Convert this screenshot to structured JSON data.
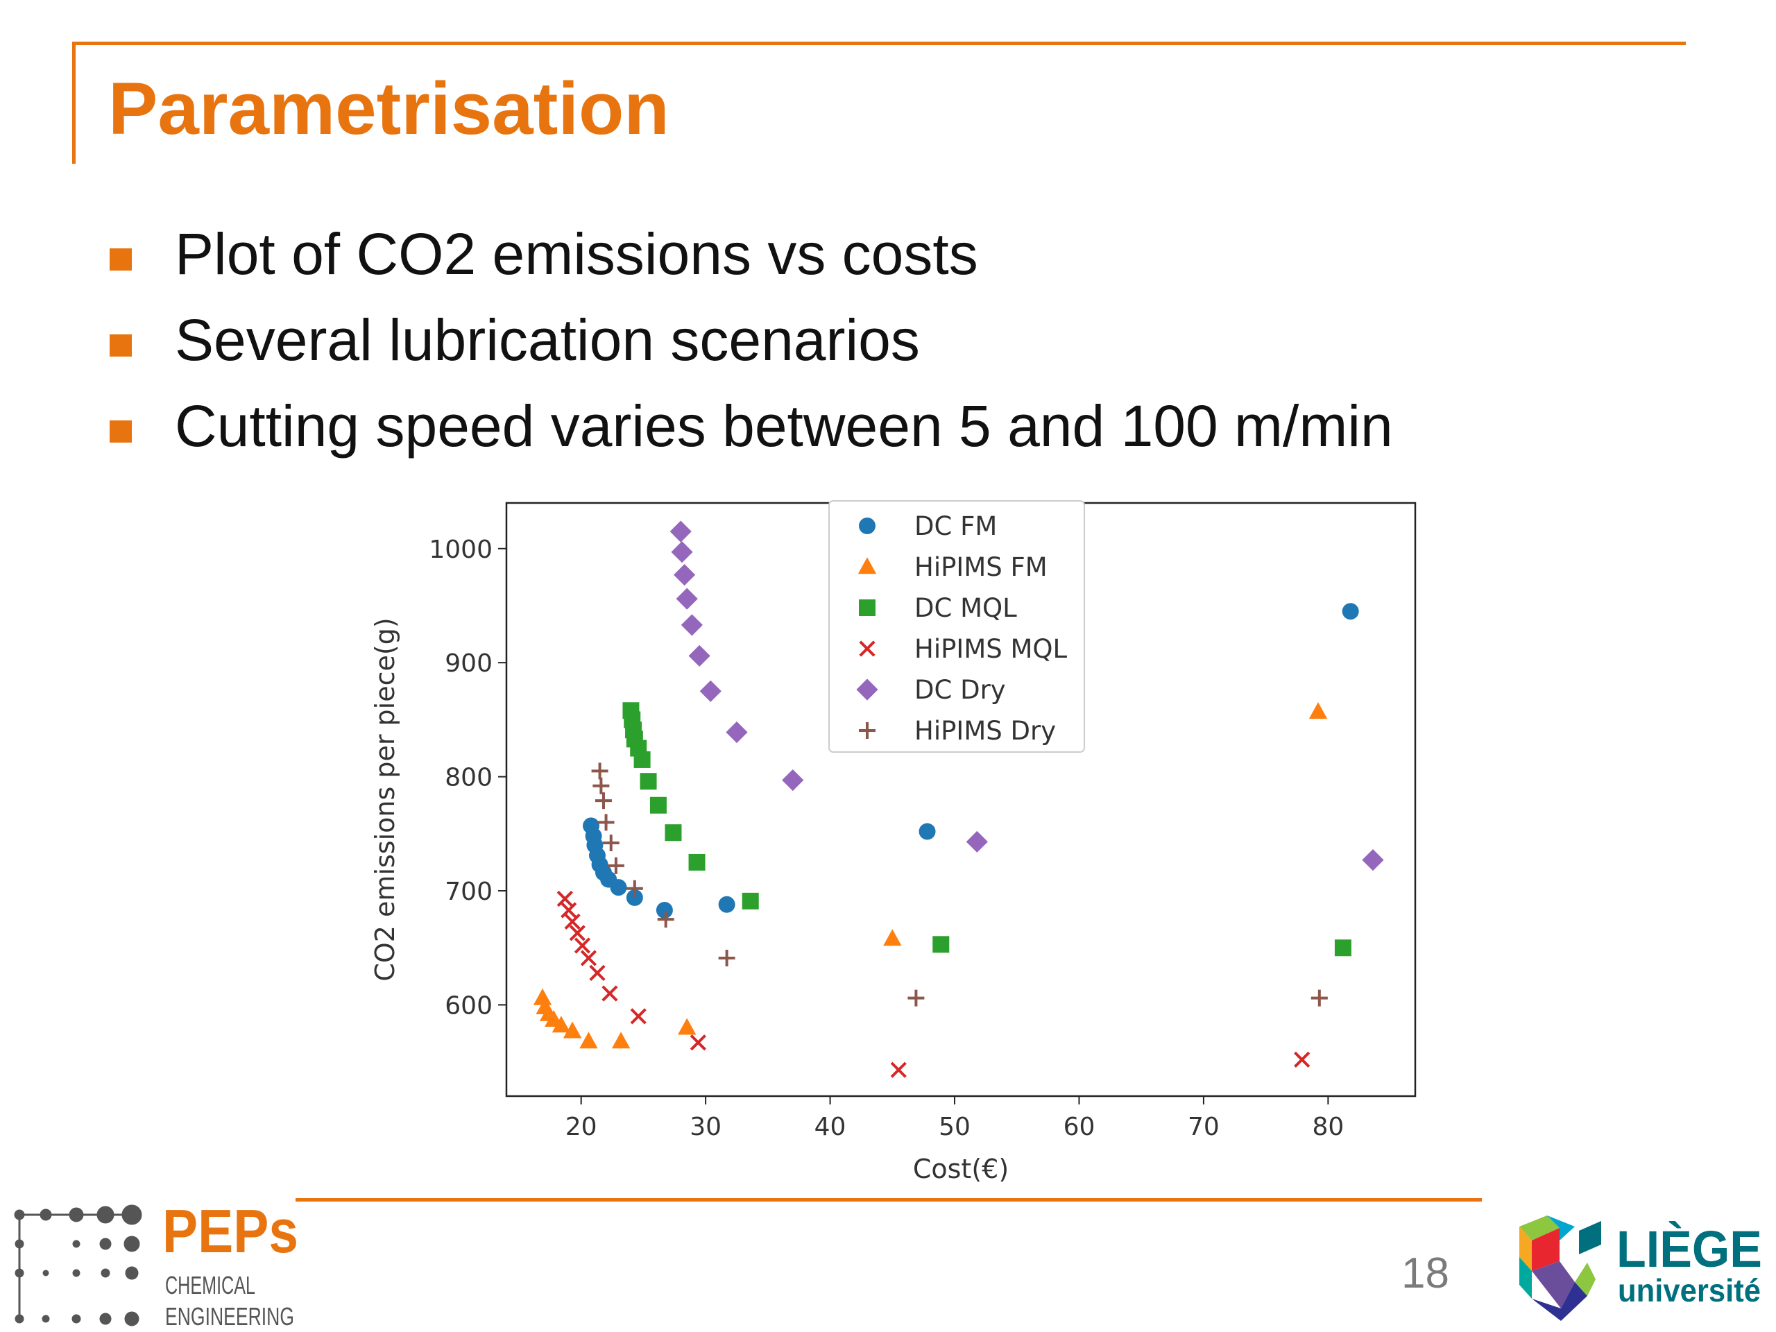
{
  "slide": {
    "title": "Parametrisation",
    "bullets": [
      "Plot of CO2 emissions vs costs",
      "Several lubrication scenarios",
      "Cutting speed varies between 5 and 100 m/min"
    ],
    "page_number": "18",
    "accent_color": "#E8740F"
  },
  "logos": {
    "peps": {
      "name": "PEPs",
      "line1": "CHEMICAL",
      "line2": "ENGINEERING"
    },
    "uliege": {
      "name": "LIÈGE",
      "sub": "université"
    }
  },
  "chart_data": {
    "type": "scatter",
    "title": "",
    "xlabel": "Cost(€)",
    "ylabel": "CO2 emissions per piece(g)",
    "xlim": [
      14,
      87
    ],
    "ylim": [
      520,
      1040
    ],
    "xticks": [
      20,
      30,
      40,
      50,
      60,
      70,
      80
    ],
    "yticks": [
      600,
      700,
      800,
      900,
      1000
    ],
    "grid": false,
    "legend_position": "top-center",
    "series": [
      {
        "name": "DC FM",
        "marker": "circle",
        "color": "#1f77b4",
        "points": [
          [
            20.8,
            757
          ],
          [
            21.0,
            748
          ],
          [
            21.1,
            740
          ],
          [
            21.3,
            731
          ],
          [
            21.5,
            723
          ],
          [
            21.8,
            716
          ],
          [
            22.2,
            710
          ],
          [
            23.0,
            703
          ],
          [
            24.3,
            694
          ],
          [
            26.7,
            683
          ],
          [
            31.7,
            688
          ],
          [
            47.8,
            752
          ],
          [
            81.8,
            945
          ]
        ]
      },
      {
        "name": "HiPIMS FM",
        "marker": "triangle",
        "color": "#ff7f0e",
        "points": [
          [
            16.9,
            606
          ],
          [
            17.1,
            598
          ],
          [
            17.4,
            592
          ],
          [
            17.8,
            587
          ],
          [
            18.4,
            582
          ],
          [
            19.3,
            577
          ],
          [
            20.6,
            568
          ],
          [
            23.2,
            568
          ],
          [
            28.5,
            580
          ],
          [
            45.0,
            658
          ],
          [
            79.2,
            857
          ]
        ]
      },
      {
        "name": "DC MQL",
        "marker": "square",
        "color": "#2ca02c",
        "points": [
          [
            24.0,
            858
          ],
          [
            24.1,
            850
          ],
          [
            24.2,
            841
          ],
          [
            24.3,
            833
          ],
          [
            24.6,
            825
          ],
          [
            24.9,
            815
          ],
          [
            25.4,
            796
          ],
          [
            26.2,
            775
          ],
          [
            27.4,
            751
          ],
          [
            29.3,
            725
          ],
          [
            33.6,
            691
          ],
          [
            48.9,
            653
          ],
          [
            81.2,
            650
          ]
        ]
      },
      {
        "name": "HiPIMS MQL",
        "marker": "x",
        "color": "#d62728",
        "points": [
          [
            18.7,
            693
          ],
          [
            19.0,
            683
          ],
          [
            19.3,
            673
          ],
          [
            19.7,
            663
          ],
          [
            20.1,
            652
          ],
          [
            20.6,
            641
          ],
          [
            21.3,
            628
          ],
          [
            22.3,
            610
          ],
          [
            24.6,
            590
          ],
          [
            29.4,
            567
          ],
          [
            45.5,
            543
          ],
          [
            77.9,
            552
          ]
        ]
      },
      {
        "name": "DC Dry",
        "marker": "diamond",
        "color": "#9467bd",
        "points": [
          [
            28.0,
            1015
          ],
          [
            28.1,
            997
          ],
          [
            28.3,
            977
          ],
          [
            28.5,
            956
          ],
          [
            28.9,
            933
          ],
          [
            29.5,
            906
          ],
          [
            30.4,
            875
          ],
          [
            32.5,
            839
          ],
          [
            37.0,
            797
          ],
          [
            51.8,
            743
          ],
          [
            83.6,
            727
          ]
        ]
      },
      {
        "name": "HiPIMS Dry",
        "marker": "plus",
        "color": "#8c564b",
        "points": [
          [
            21.5,
            805
          ],
          [
            21.6,
            792
          ],
          [
            21.8,
            779
          ],
          [
            22.0,
            760
          ],
          [
            22.4,
            742
          ],
          [
            22.8,
            722
          ],
          [
            24.3,
            702
          ],
          [
            26.8,
            675
          ],
          [
            31.7,
            641
          ],
          [
            46.9,
            606
          ],
          [
            79.3,
            606
          ]
        ]
      }
    ]
  }
}
